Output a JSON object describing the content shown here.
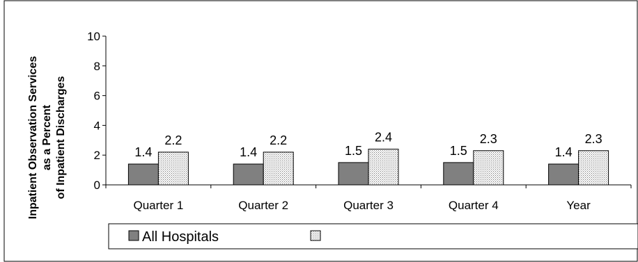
{
  "chart_data": {
    "type": "bar",
    "ylabel_lines": [
      "Inpatient Observation Services",
      "as a Percent",
      "of Inpatient Discharges"
    ],
    "categories": [
      "Quarter 1",
      "Quarter 2",
      "Quarter 3",
      "Quarter 4",
      "Year"
    ],
    "ylim": [
      0,
      10
    ],
    "yticks": [
      0,
      2,
      4,
      6,
      8,
      10
    ],
    "grid": false,
    "legend_position": "bottom",
    "series": [
      {
        "name": "All Hospitals",
        "values": [
          1.4,
          1.4,
          1.5,
          1.5,
          1.4
        ],
        "color": "#808080",
        "fill": "solid"
      },
      {
        "name": "",
        "values": [
          2.2,
          2.2,
          2.4,
          2.3,
          2.3
        ],
        "color": "#d9d9d9",
        "fill": "dotted"
      }
    ],
    "data_labels": [
      [
        "1.4",
        "1.4",
        "1.5",
        "1.5",
        "1.4"
      ],
      [
        "2.2",
        "2.2",
        "2.4",
        "2.3",
        "2.3"
      ]
    ]
  }
}
